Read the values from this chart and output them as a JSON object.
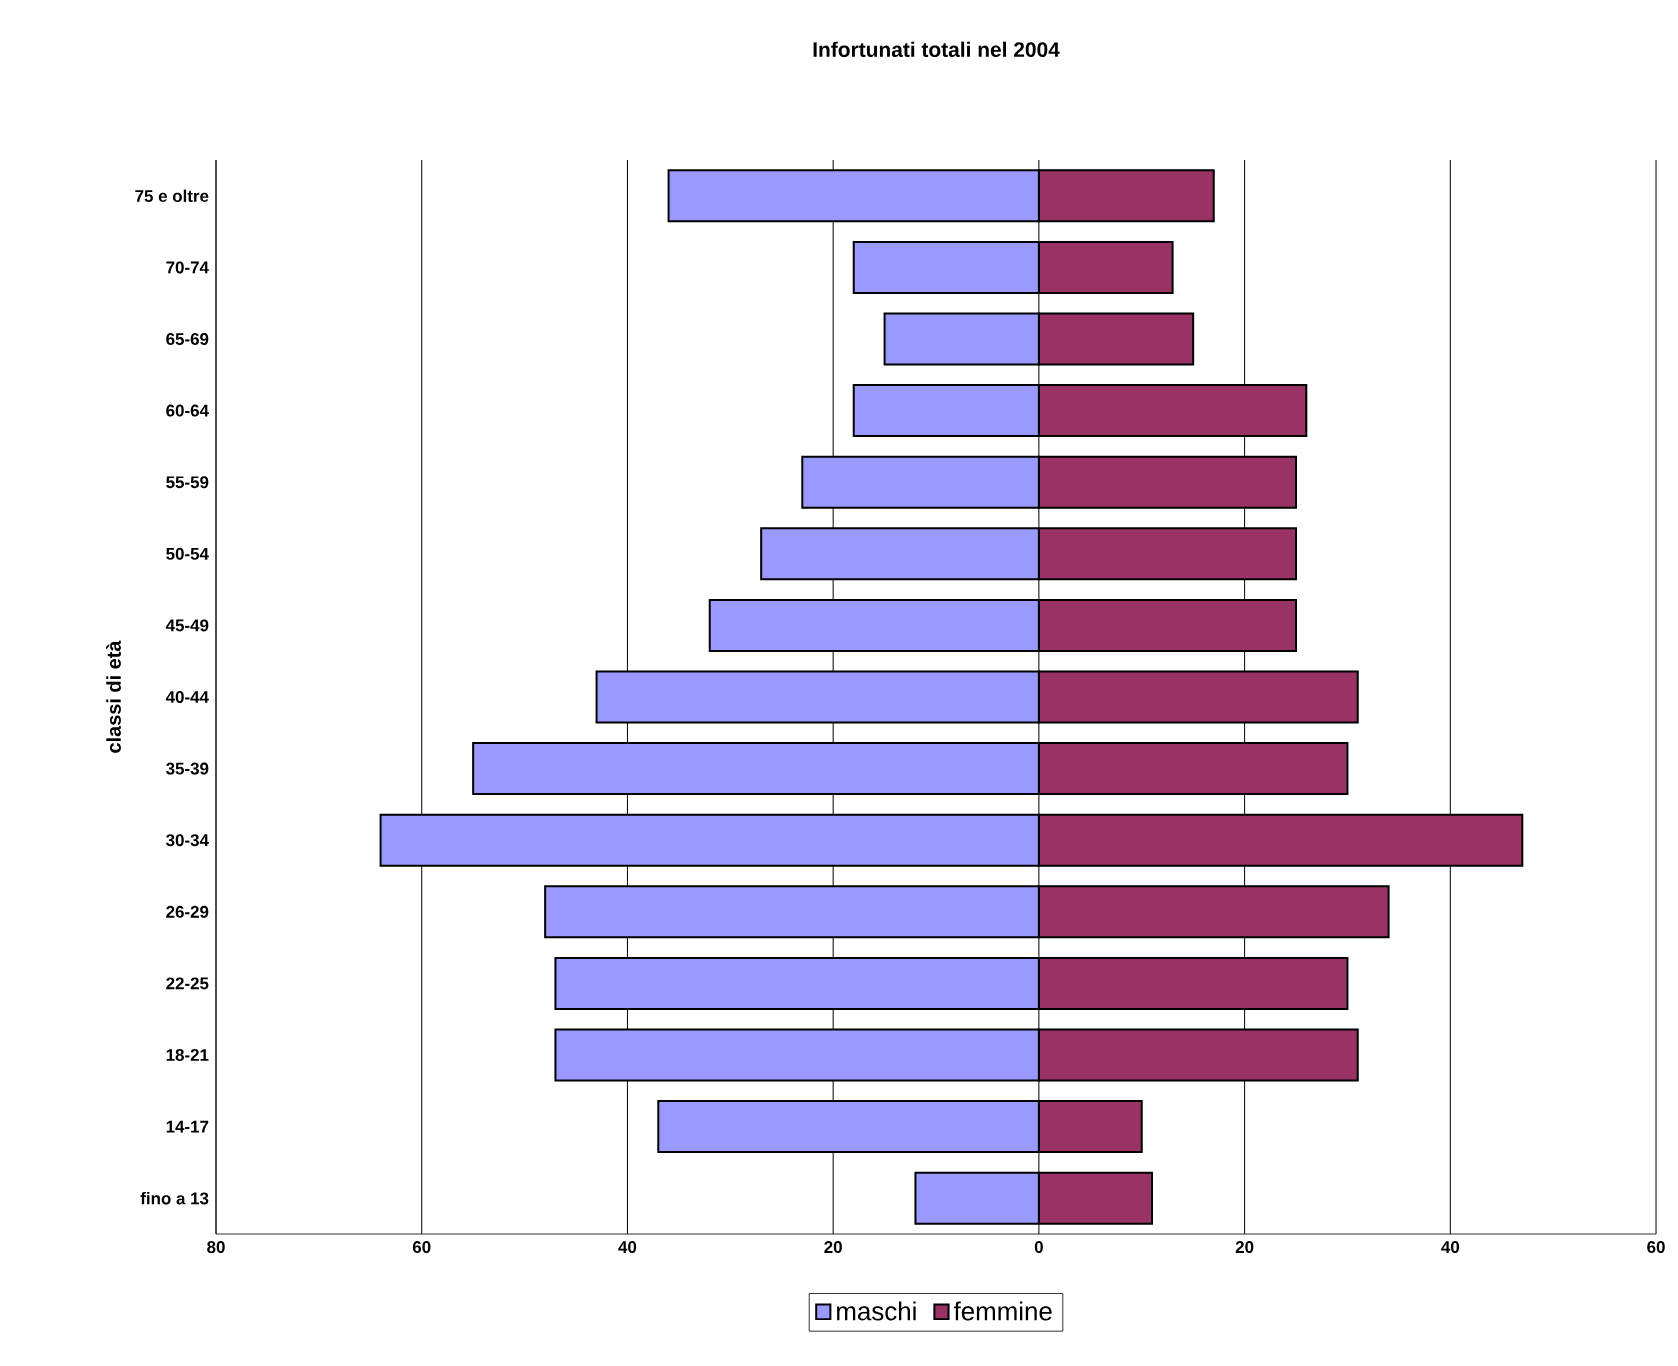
{
  "chart_data": {
    "type": "bar",
    "orientation": "horizontal",
    "title": "Infortunati totali nel 2004",
    "ylabel": "classi di età",
    "categories": [
      "75 e oltre",
      "70-74",
      "65-69",
      "60-64",
      "55-59",
      "50-54",
      "45-49",
      "40-44",
      "35-39",
      "30-34",
      "26-29",
      "22-25",
      "18-21",
      "14-17",
      "fino a 13"
    ],
    "series": [
      {
        "name": "maschi",
        "color": "#9999ff",
        "values": [
          -36,
          -18,
          -15,
          -18,
          -23,
          -27,
          -32,
          -43,
          -55,
          -64,
          -48,
          -47,
          -47,
          -37,
          -12
        ]
      },
      {
        "name": "femmine",
        "color": "#993366",
        "values": [
          17,
          13,
          15,
          26,
          25,
          25,
          25,
          31,
          30,
          47,
          34,
          30,
          31,
          10,
          11
        ]
      }
    ],
    "xlim": [
      -80,
      60
    ],
    "xticks": [
      {
        "value": -80,
        "label": "80"
      },
      {
        "value": -60,
        "label": "60"
      },
      {
        "value": -40,
        "label": "40"
      },
      {
        "value": -20,
        "label": "20"
      },
      0,
      20,
      40,
      60
    ],
    "grid": "x",
    "legend": "bottom",
    "stacked": true
  }
}
